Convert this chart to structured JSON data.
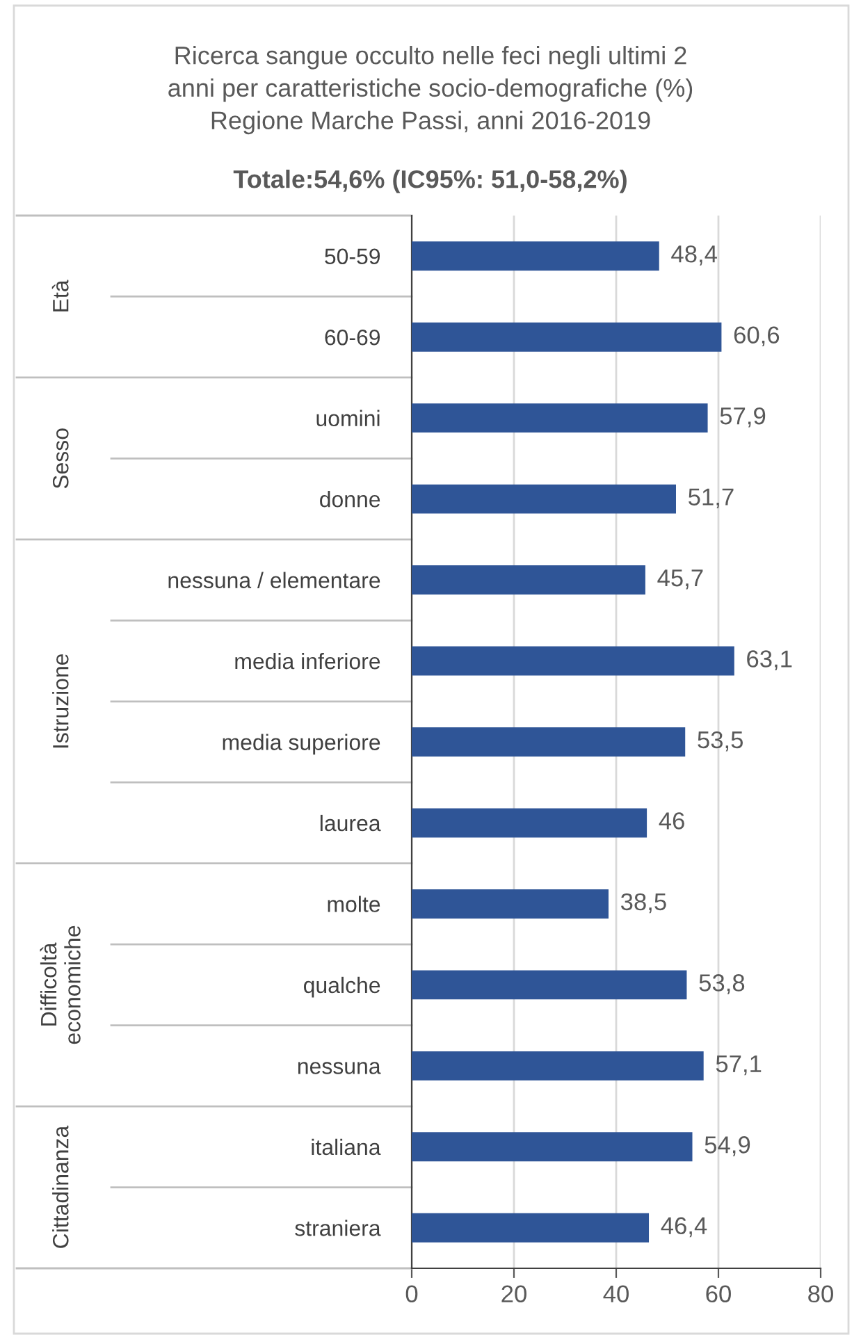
{
  "chart_data": {
    "type": "bar",
    "orientation": "horizontal",
    "title": "Ricerca sangue occulto nelle feci negli ultimi 2\nanni per caratteristiche socio-demografiche (%)\nRegione Marche Passi, anni 2016-2019",
    "subtitle": "Totale:54,6% (IC95%: 51,0-58,2%)",
    "categories": [
      "50-59",
      "60-69",
      "uomini",
      "donne",
      "nessuna / elementare",
      "media inferiore",
      "media superiore",
      "laurea",
      "molte",
      "qualche",
      "nessuna",
      "italiana",
      "straniera"
    ],
    "values": [
      48.4,
      60.6,
      57.9,
      51.7,
      45.7,
      63.1,
      53.5,
      46,
      38.5,
      53.8,
      57.1,
      54.9,
      46.4
    ],
    "value_labels": [
      "48,4",
      "60,6",
      "57,9",
      "51,7",
      "45,7",
      "63,1",
      "53,5",
      "46",
      "38,5",
      "53,8",
      "57,1",
      "54,9",
      "46,4"
    ],
    "color": "#2f5597",
    "xlim": [
      0,
      80
    ],
    "xticks": [
      0,
      20,
      40,
      60,
      80
    ],
    "grid": "x",
    "annotations": [
      "Età",
      "Sesso",
      "Istruzione",
      "Difficoltà\neconomiche",
      "Cittadinanza"
    ]
  }
}
